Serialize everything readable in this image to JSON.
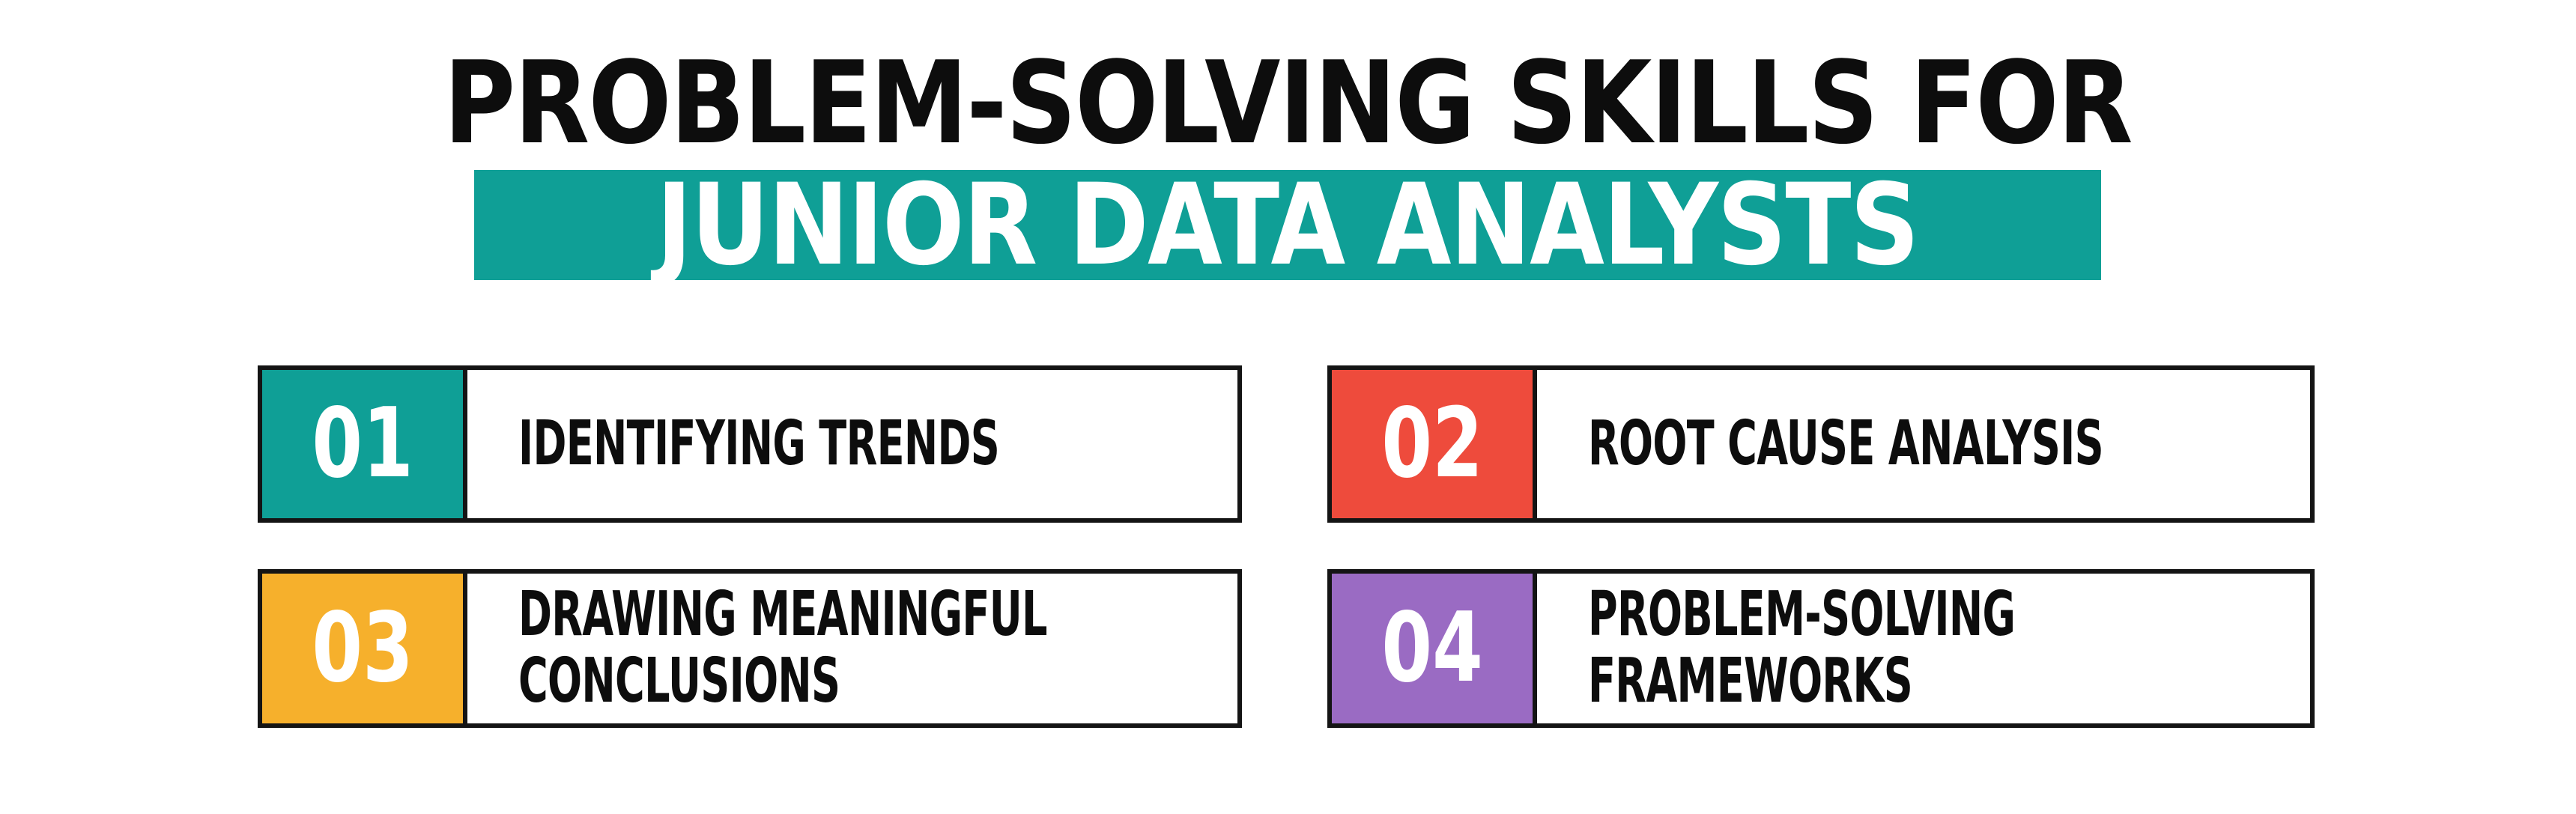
{
  "header": {
    "title_line1": "PROBLEM-SOLVING SKILLS FOR",
    "title_line2": "JUNIOR DATA ANALYSTS",
    "banner_color": "#0f9f96",
    "title_color": "#0d0d0d",
    "banner_text_color": "#ffffff"
  },
  "cards": [
    {
      "number": "01",
      "label": "IDENTIFYING TRENDS",
      "color": "#0f9f96"
    },
    {
      "number": "02",
      "label": "ROOT CAUSE ANALYSIS",
      "color": "#ee4b3c"
    },
    {
      "number": "03",
      "label": "DRAWING MEANINGFUL CONCLUSIONS",
      "color": "#f6b02c"
    },
    {
      "number": "04",
      "label": "PROBLEM-SOLVING FRAMEWORKS",
      "color": "#9a6bc3"
    }
  ],
  "style_tokens": {
    "card_border_color": "#141414",
    "number_text_color": "#ffffff",
    "label_text_color": "#0d0d0d",
    "background": "#ffffff"
  }
}
